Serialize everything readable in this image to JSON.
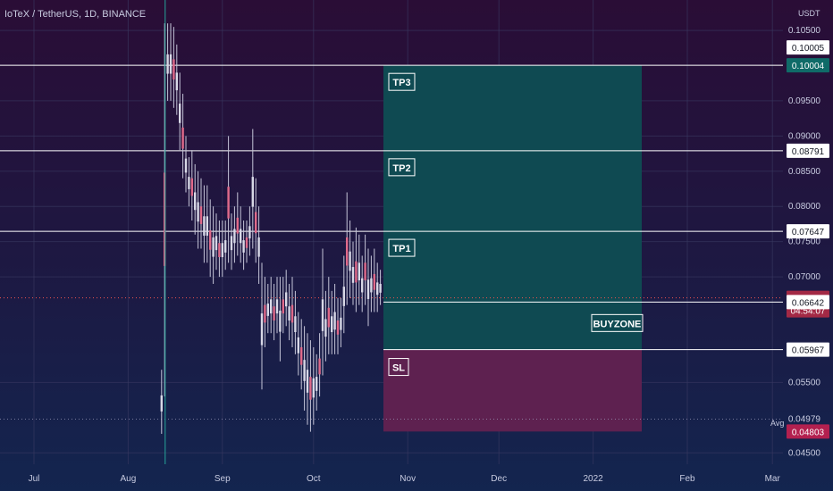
{
  "header": {
    "title": "IoTeX / TetherUS, 1D, BINANCE",
    "unit": "USDT",
    "avg_label": "Avg"
  },
  "colors": {
    "up": "#26a69a",
    "down": "#ef5350",
    "profit": "#0f4a52",
    "loss": "#5e2150",
    "grid": "#3a3a62",
    "axis_text": "#c8cbe0"
  },
  "chart_data": {
    "type": "candlestick",
    "title": "IoTeX / TetherUS, 1D, BINANCE",
    "ylabel": "USDT",
    "ylim": [
      0.0444,
      0.10615
    ],
    "y_ticks": [
      "0.04500",
      "0.05500",
      "0.07000",
      "0.07500",
      "0.08000",
      "0.08500",
      "0.09000",
      "0.09500",
      "0.10500"
    ],
    "x_ticks": [
      "Jul",
      "Aug",
      "Sep",
      "Oct",
      "Nov",
      "Dec",
      "2022",
      "Feb",
      "Mar"
    ],
    "levels": [
      {
        "name": "TP3",
        "value": 0.10004
      },
      {
        "name": "TP2",
        "value": 0.08791
      },
      {
        "name": "TP1",
        "value": 0.07647
      },
      {
        "name": "BUYZONE",
        "value": 0.06642
      },
      {
        "name": "SL",
        "value": 0.05967
      }
    ],
    "price_labels": [
      {
        "value": "0.10005",
        "kind": "plain"
      },
      {
        "value": "0.10004",
        "kind": "teal"
      },
      {
        "value": "0.08791",
        "kind": "plain"
      },
      {
        "value": "0.07647",
        "kind": "plain"
      },
      {
        "value": "0.06701",
        "kind": "red",
        "sub": "04:54:07"
      },
      {
        "value": "0.06642",
        "kind": "plain"
      },
      {
        "value": "0.05967",
        "kind": "plain"
      },
      {
        "value": "0.04979",
        "kind": "none"
      },
      {
        "value": "0.04803",
        "kind": "pink"
      }
    ],
    "current_price": 0.06701,
    "countdown": "04:54:07",
    "avg_price": 0.04979,
    "zones": {
      "profit": {
        "top": 0.10004,
        "bottom": 0.05967
      },
      "loss": {
        "top": 0.05967,
        "bottom": 0.04803
      },
      "x_range": [
        "2021-10-24",
        "2022-01-17"
      ]
    },
    "candles_start": "2021-08-12",
    "candles_end": "2021-10-23",
    "candles_hl": [
      [
        0.0568,
        0.0477
      ],
      [
        0.106,
        0.053
      ],
      [
        0.106,
        0.095
      ],
      [
        0.106,
        0.095
      ],
      [
        0.1055,
        0.094
      ],
      [
        0.103,
        0.093
      ],
      [
        0.099,
        0.088
      ],
      [
        0.096,
        0.084
      ],
      [
        0.09,
        0.082
      ],
      [
        0.087,
        0.08
      ],
      [
        0.088,
        0.078
      ],
      [
        0.086,
        0.076
      ],
      [
        0.085,
        0.074
      ],
      [
        0.084,
        0.074
      ],
      [
        0.083,
        0.072
      ],
      [
        0.083,
        0.072
      ],
      [
        0.081,
        0.07
      ],
      [
        0.08,
        0.069
      ],
      [
        0.079,
        0.071
      ],
      [
        0.078,
        0.07
      ],
      [
        0.078,
        0.07
      ],
      [
        0.078,
        0.071
      ],
      [
        0.09,
        0.072
      ],
      [
        0.079,
        0.071
      ],
      [
        0.08,
        0.072
      ],
      [
        0.082,
        0.073
      ],
      [
        0.08,
        0.072
      ],
      [
        0.078,
        0.071
      ],
      [
        0.078,
        0.072
      ],
      [
        0.08,
        0.073
      ],
      [
        0.091,
        0.074
      ],
      [
        0.084,
        0.072
      ],
      [
        0.08,
        0.069
      ],
      [
        0.072,
        0.054
      ],
      [
        0.07,
        0.06
      ],
      [
        0.069,
        0.062
      ],
      [
        0.07,
        0.062
      ],
      [
        0.069,
        0.061
      ],
      [
        0.07,
        0.062
      ],
      [
        0.07,
        0.058
      ],
      [
        0.07,
        0.062
      ],
      [
        0.071,
        0.063
      ],
      [
        0.069,
        0.061
      ],
      [
        0.07,
        0.06
      ],
      [
        0.068,
        0.059
      ],
      [
        0.065,
        0.056
      ],
      [
        0.064,
        0.054
      ],
      [
        0.063,
        0.051
      ],
      [
        0.062,
        0.049
      ],
      [
        0.061,
        0.048
      ],
      [
        0.06,
        0.049
      ],
      [
        0.059,
        0.051
      ],
      [
        0.062,
        0.053
      ],
      [
        0.074,
        0.056
      ],
      [
        0.068,
        0.058
      ],
      [
        0.07,
        0.059
      ],
      [
        0.068,
        0.059
      ],
      [
        0.069,
        0.059
      ],
      [
        0.067,
        0.059
      ],
      [
        0.067,
        0.06
      ],
      [
        0.073,
        0.062
      ],
      [
        0.082,
        0.066
      ],
      [
        0.078,
        0.067
      ],
      [
        0.075,
        0.066
      ],
      [
        0.077,
        0.065
      ],
      [
        0.076,
        0.066
      ],
      [
        0.073,
        0.065
      ],
      [
        0.076,
        0.066
      ],
      [
        0.074,
        0.063
      ],
      [
        0.073,
        0.065
      ],
      [
        0.074,
        0.065
      ],
      [
        0.072,
        0.065
      ],
      [
        0.071,
        0.066
      ]
    ]
  }
}
